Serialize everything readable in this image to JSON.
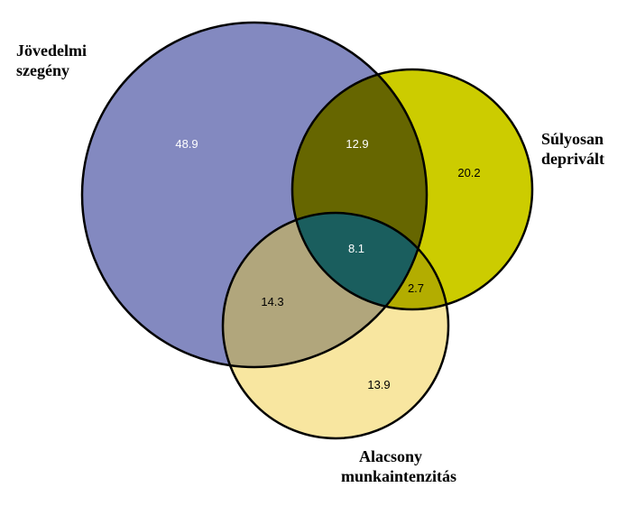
{
  "sets": {
    "income_poor": {
      "label_lines": [
        "Jövedelmi",
        "szegény"
      ],
      "color": "#8389c0"
    },
    "deprived": {
      "label_lines": [
        "Súlyosan",
        "deprivált"
      ],
      "color": "#cccc00"
    },
    "low_work": {
      "label_lines": [
        "Alacsony",
        "munkaintenzitás"
      ],
      "color": "#f8e6a0"
    }
  },
  "regions": {
    "income_only": {
      "value": "48.9",
      "color": "#8389c0",
      "text_color": "#ffffff"
    },
    "deprived_only": {
      "value": "20.2",
      "color": "#cccc00",
      "text_color": "#000000"
    },
    "low_work_only": {
      "value": "13.9",
      "color": "#f8e6a0",
      "text_color": "#000000"
    },
    "income_deprived": {
      "value": "12.9",
      "color": "#666600",
      "text_color": "#ffffff"
    },
    "income_low_work": {
      "value": "14.3",
      "color": "#b1a67c",
      "text_color": "#000000"
    },
    "deprived_low_work": {
      "value": "2.7",
      "color": "#b3ad00",
      "text_color": "#000000"
    },
    "all_three": {
      "value": "8.1",
      "color": "#1a5e5e",
      "text_color": "#ffffff"
    }
  }
}
